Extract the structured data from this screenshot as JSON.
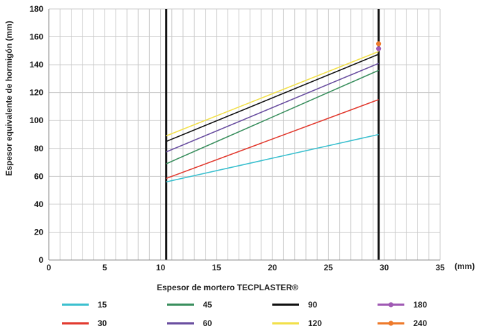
{
  "chart_data": {
    "type": "line",
    "xlabel": "Espesor de mortero TECPLASTER®",
    "xunit": "(mm)",
    "ylabel": "Espesor equivalente de hormigón (mm)",
    "xlim": [
      0,
      35
    ],
    "ylim": [
      0,
      180
    ],
    "xticks": [
      0,
      5,
      10,
      15,
      20,
      25,
      30,
      35
    ],
    "yticks": [
      0,
      20,
      40,
      60,
      80,
      100,
      120,
      140,
      160,
      180
    ],
    "grid": true,
    "vertical_lines": [
      10.5,
      29.5
    ],
    "series": [
      {
        "name": "15",
        "color": "#3cc0cf",
        "marker": "none",
        "x": [
          10.5,
          29.5
        ],
        "y": [
          56,
          90
        ]
      },
      {
        "name": "30",
        "color": "#e23b30",
        "marker": "none",
        "x": [
          10.5,
          29.5
        ],
        "y": [
          58.5,
          115
        ]
      },
      {
        "name": "45",
        "color": "#3a8f5e",
        "marker": "none",
        "x": [
          10.5,
          29.5
        ],
        "y": [
          69,
          136
        ]
      },
      {
        "name": "60",
        "color": "#6a4fa0",
        "marker": "none",
        "x": [
          10.5,
          29.5
        ],
        "y": [
          77.5,
          141
        ]
      },
      {
        "name": "90",
        "color": "#111111",
        "marker": "none",
        "x": [
          10.5,
          29.5
        ],
        "y": [
          85,
          147.5
        ]
      },
      {
        "name": "120",
        "color": "#f2e04a",
        "marker": "none",
        "x": [
          10.5,
          29.5
        ],
        "y": [
          89,
          149.5
        ]
      },
      {
        "name": "180",
        "color": "#a05ab4",
        "marker": "circle",
        "x": [
          29.5
        ],
        "y": [
          151.5
        ]
      },
      {
        "name": "240",
        "color": "#ee7a2c",
        "marker": "circle",
        "x": [
          29.5
        ],
        "y": [
          155
        ]
      }
    ],
    "legend": {
      "placement": "bottom",
      "rows": [
        [
          "15",
          "45",
          "90",
          "180"
        ],
        [
          "30",
          "60",
          "120",
          "240"
        ]
      ]
    }
  }
}
